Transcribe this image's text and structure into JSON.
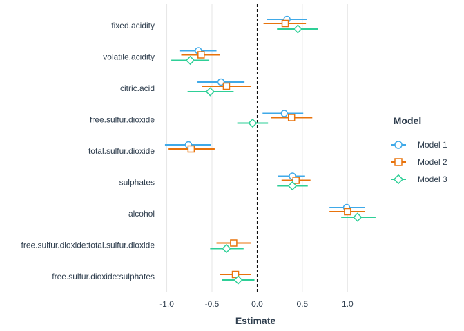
{
  "chart_data": {
    "type": "coefficient_plot",
    "xlabel": "Estimate",
    "ylabel": "",
    "xlim": [
      -1.05,
      1.28
    ],
    "xticks": [
      -1.0,
      -0.5,
      0.0,
      0.5,
      1.0
    ],
    "xtick_labels": [
      "-1.0",
      "-0.5",
      "0.0",
      "0.5",
      "1.0"
    ],
    "zero_line": "dashed",
    "grid": "vertical major",
    "legend": {
      "title": "Model",
      "placement": "right"
    },
    "terms": [
      "fixed.acidity",
      "volatile.acidity",
      "citric.acid",
      "free.sulfur.dioxide",
      "total.sulfur.dioxide",
      "sulphates",
      "alcohol",
      "free.sulfur.dioxide:total.sulfur.dioxide",
      "free.sulfur.dioxide:sulphates"
    ],
    "series": [
      {
        "name": "Model 1",
        "color": "#3fa9e8",
        "shape": "circle",
        "points": [
          {
            "term": "fixed.acidity",
            "estimate": 0.33,
            "low": 0.11,
            "high": 0.55
          },
          {
            "term": "volatile.acidity",
            "estimate": -0.65,
            "low": -0.86,
            "high": -0.45
          },
          {
            "term": "citric.acid",
            "estimate": -0.4,
            "low": -0.66,
            "high": -0.14
          },
          {
            "term": "free.sulfur.dioxide",
            "estimate": 0.3,
            "low": 0.06,
            "high": 0.51
          },
          {
            "term": "total.sulfur.dioxide",
            "estimate": -0.76,
            "low": -1.02,
            "high": -0.51
          },
          {
            "term": "sulphates",
            "estimate": 0.39,
            "low": 0.23,
            "high": 0.53
          },
          {
            "term": "alcohol",
            "estimate": 0.99,
            "low": 0.8,
            "high": 1.19
          }
        ]
      },
      {
        "name": "Model 2",
        "color": "#e8730c",
        "shape": "square",
        "points": [
          {
            "term": "fixed.acidity",
            "estimate": 0.31,
            "low": 0.07,
            "high": 0.54
          },
          {
            "term": "volatile.acidity",
            "estimate": -0.62,
            "low": -0.84,
            "high": -0.41
          },
          {
            "term": "citric.acid",
            "estimate": -0.34,
            "low": -0.61,
            "high": -0.07
          },
          {
            "term": "free.sulfur.dioxide",
            "estimate": 0.38,
            "low": 0.15,
            "high": 0.61
          },
          {
            "term": "total.sulfur.dioxide",
            "estimate": -0.73,
            "low": -0.98,
            "high": -0.47
          },
          {
            "term": "sulphates",
            "estimate": 0.43,
            "low": 0.27,
            "high": 0.59
          },
          {
            "term": "alcohol",
            "estimate": 1.0,
            "low": 0.8,
            "high": 1.19
          },
          {
            "term": "free.sulfur.dioxide:total.sulfur.dioxide",
            "estimate": -0.26,
            "low": -0.45,
            "high": -0.07
          },
          {
            "term": "free.sulfur.dioxide:sulphates",
            "estimate": -0.24,
            "low": -0.41,
            "high": -0.07
          }
        ]
      },
      {
        "name": "Model 3",
        "color": "#2ecf97",
        "shape": "diamond",
        "points": [
          {
            "term": "fixed.acidity",
            "estimate": 0.45,
            "low": 0.22,
            "high": 0.67
          },
          {
            "term": "volatile.acidity",
            "estimate": -0.74,
            "low": -0.95,
            "high": -0.53
          },
          {
            "term": "citric.acid",
            "estimate": -0.52,
            "low": -0.77,
            "high": -0.26
          },
          {
            "term": "free.sulfur.dioxide",
            "estimate": -0.05,
            "low": -0.22,
            "high": 0.12
          },
          {
            "term": "sulphates",
            "estimate": 0.39,
            "low": 0.22,
            "high": 0.56
          },
          {
            "term": "alcohol",
            "estimate": 1.11,
            "low": 0.93,
            "high": 1.31
          },
          {
            "term": "free.sulfur.dioxide:total.sulfur.dioxide",
            "estimate": -0.34,
            "low": -0.52,
            "high": -0.15
          },
          {
            "term": "free.sulfur.dioxide:sulphates",
            "estimate": -0.21,
            "low": -0.39,
            "high": -0.03
          }
        ]
      }
    ]
  }
}
